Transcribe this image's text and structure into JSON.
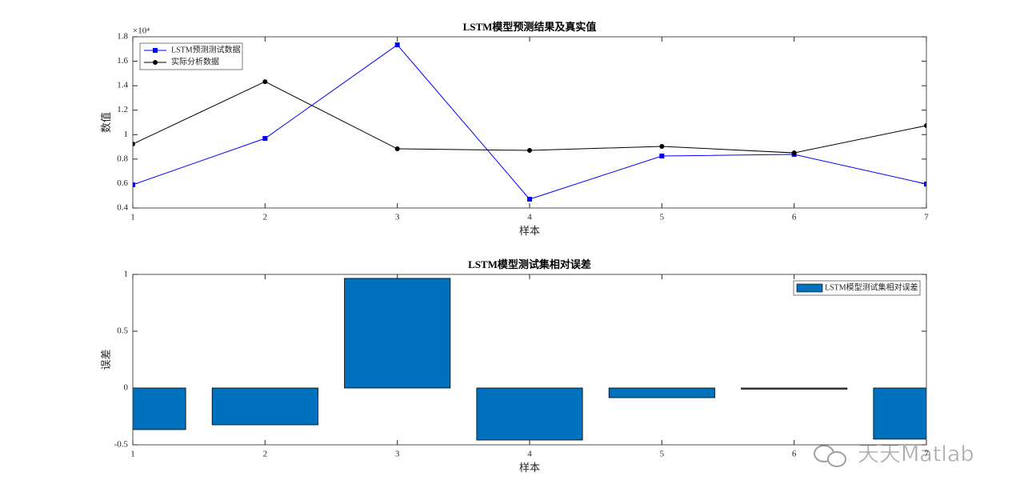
{
  "chart_data": [
    {
      "type": "line",
      "title": "LSTM模型预测结果及真实值",
      "xlabel": "样本",
      "ylabel": "数值",
      "exponent": "×10⁴",
      "x": [
        1,
        2,
        3,
        4,
        5,
        6,
        7
      ],
      "series": [
        {
          "name": "LSTM预测测试数据",
          "color": "#0000ff",
          "marker": "square",
          "values": [
            0.59,
            0.969,
            1.734,
            0.472,
            0.825,
            0.838,
            0.596
          ]
        },
        {
          "name": "实际分析数据",
          "color": "#000000",
          "marker": "circle",
          "values": [
            0.923,
            1.433,
            0.884,
            0.871,
            0.904,
            0.851,
            1.074
          ]
        }
      ],
      "xlim": [
        1,
        7
      ],
      "xticks": [
        1,
        2,
        3,
        4,
        5,
        6,
        7
      ],
      "ylim": [
        0.4,
        1.8
      ],
      "yticks": [
        0.4,
        0.6,
        0.8,
        1,
        1.2,
        1.4,
        1.6,
        1.8
      ],
      "legend": "northwest"
    },
    {
      "type": "bar",
      "title": "LSTM模型测试集相对误差",
      "xlabel": "样本",
      "ylabel": "误差",
      "x": [
        1,
        2,
        3,
        4,
        5,
        6,
        7
      ],
      "series": [
        {
          "name": "LSTM模型测试集相对误差",
          "color": "#0072bd",
          "values": [
            -0.366,
            -0.324,
            0.965,
            -0.458,
            -0.085,
            -0.01,
            -0.45
          ]
        }
      ],
      "xlim": [
        1,
        7
      ],
      "xticks": [
        1,
        2,
        3,
        4,
        5,
        6,
        7
      ],
      "ylim": [
        -0.5,
        1
      ],
      "yticks": [
        -0.5,
        0,
        0.5,
        1
      ],
      "legend": "northeast"
    }
  ],
  "watermark": "天天Matlab"
}
